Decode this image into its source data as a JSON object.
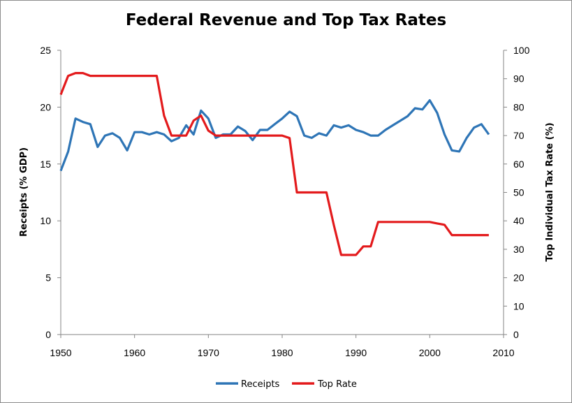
{
  "chart_data": {
    "type": "line",
    "title": "Federal Revenue and Top Tax Rates",
    "xlabel": "",
    "ylabel": "Receipts (% GDP)",
    "y2label": "Top Individual Tax Rate (%)",
    "xlim": [
      1950,
      2010
    ],
    "ylim": [
      0,
      25
    ],
    "y2lim": [
      0,
      100
    ],
    "x_ticks": [
      1950,
      1960,
      1970,
      1980,
      1990,
      2000,
      2010
    ],
    "y_ticks": [
      0,
      5,
      10,
      15,
      20,
      25
    ],
    "y2_ticks": [
      0,
      10,
      20,
      30,
      40,
      50,
      60,
      70,
      80,
      90,
      100
    ],
    "grid": false,
    "legend_position": "bottom",
    "series": [
      {
        "name": "Receipts",
        "axis": "left",
        "color": "#2e75b6",
        "x": [
          1950,
          1951,
          1952,
          1953,
          1954,
          1955,
          1956,
          1957,
          1958,
          1959,
          1960,
          1961,
          1962,
          1963,
          1964,
          1965,
          1966,
          1967,
          1968,
          1969,
          1970,
          1971,
          1972,
          1973,
          1974,
          1975,
          1976,
          1977,
          1978,
          1979,
          1980,
          1981,
          1982,
          1983,
          1984,
          1985,
          1986,
          1987,
          1988,
          1989,
          1990,
          1991,
          1992,
          1993,
          1994,
          1995,
          1996,
          1997,
          1998,
          1999,
          2000,
          2001,
          2002,
          2003,
          2004,
          2005,
          2006,
          2007,
          2008
        ],
        "values": [
          14.4,
          16.1,
          19.0,
          18.7,
          18.5,
          16.5,
          17.5,
          17.7,
          17.3,
          16.2,
          17.8,
          17.8,
          17.6,
          17.8,
          17.6,
          17.0,
          17.3,
          18.4,
          17.6,
          19.7,
          19.0,
          17.3,
          17.6,
          17.6,
          18.3,
          17.9,
          17.1,
          18.0,
          18.0,
          18.5,
          19.0,
          19.6,
          19.2,
          17.5,
          17.3,
          17.7,
          17.5,
          18.4,
          18.2,
          18.4,
          18.0,
          17.8,
          17.5,
          17.5,
          18.0,
          18.4,
          18.8,
          19.2,
          19.9,
          19.8,
          20.6,
          19.5,
          17.6,
          16.2,
          16.1,
          17.3,
          18.2,
          18.5,
          17.6
        ]
      },
      {
        "name": "Top Rate",
        "axis": "right",
        "color": "#e31a1c",
        "x": [
          1950,
          1951,
          1952,
          1953,
          1954,
          1955,
          1956,
          1957,
          1958,
          1959,
          1960,
          1961,
          1962,
          1963,
          1964,
          1965,
          1966,
          1967,
          1968,
          1969,
          1970,
          1971,
          1972,
          1973,
          1974,
          1975,
          1976,
          1977,
          1978,
          1979,
          1980,
          1981,
          1982,
          1983,
          1984,
          1985,
          1986,
          1987,
          1988,
          1989,
          1990,
          1991,
          1992,
          1993,
          1994,
          1995,
          1996,
          1997,
          1998,
          1999,
          2000,
          2001,
          2002,
          2003,
          2004,
          2005,
          2006,
          2007,
          2008
        ],
        "values": [
          84.4,
          91,
          92,
          92,
          91,
          91,
          91,
          91,
          91,
          91,
          91,
          91,
          91,
          91,
          77,
          70,
          70,
          70,
          75.25,
          77,
          71.75,
          70,
          70,
          70,
          70,
          70,
          70,
          70,
          70,
          70,
          70,
          69.125,
          50,
          50,
          50,
          50,
          50,
          38.5,
          28,
          28,
          28,
          31,
          31,
          39.6,
          39.6,
          39.6,
          39.6,
          39.6,
          39.6,
          39.6,
          39.6,
          39.1,
          38.6,
          35,
          35,
          35,
          35,
          35,
          35
        ]
      }
    ]
  }
}
